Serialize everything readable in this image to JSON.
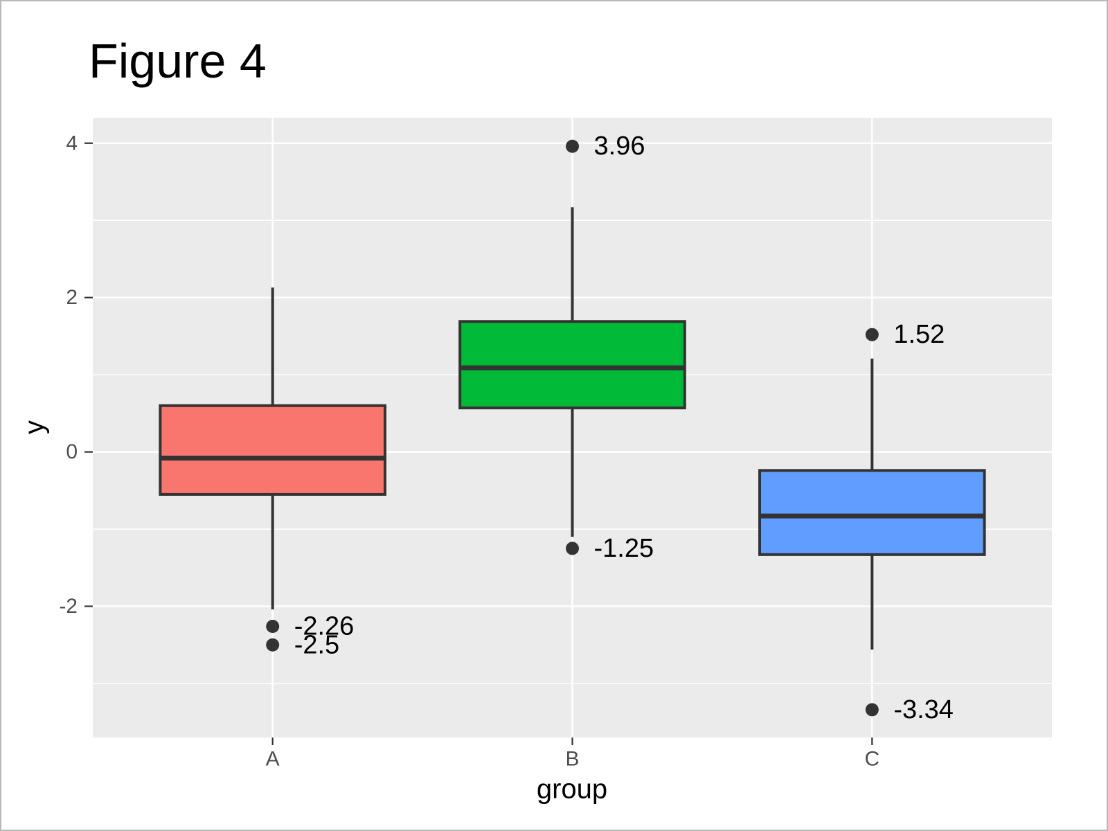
{
  "chart_data": {
    "type": "boxplot",
    "title": "Figure 4",
    "xlabel": "group",
    "ylabel": "y",
    "categories": [
      "A",
      "B",
      "C"
    ],
    "ylim": [
      -3.7,
      4.33
    ],
    "y_major_ticks": [
      {
        "value": 4,
        "label": "4"
      },
      {
        "value": 2,
        "label": "2"
      },
      {
        "value": 0,
        "label": "0"
      },
      {
        "value": -2,
        "label": "-2"
      }
    ],
    "y_minor_gridlines": [
      3,
      1,
      -1,
      -3
    ],
    "grid": true,
    "legend": "none",
    "panel_bg_color": "#EBEBEB",
    "gridline_color": "#FFFFFF",
    "box_outline_color": "#333333",
    "tick_label_color": "#4D4D4D",
    "outlier_label_color": "#000000",
    "series": [
      {
        "name": "A",
        "fill_color": "#F8766D",
        "whisker_low": -2.04,
        "q1": -0.55,
        "median": -0.08,
        "q3": 0.6,
        "whisker_high": 2.13,
        "outliers": [
          {
            "value": -2.26,
            "label": "-2.26"
          },
          {
            "value": -2.5,
            "label": "-2.5"
          }
        ]
      },
      {
        "name": "B",
        "fill_color": "#00BA38",
        "whisker_low": -1.1,
        "q1": 0.57,
        "median": 1.09,
        "q3": 1.69,
        "whisker_high": 3.17,
        "outliers": [
          {
            "value": 3.96,
            "label": "3.96"
          },
          {
            "value": -1.25,
            "label": "-1.25"
          }
        ]
      },
      {
        "name": "C",
        "fill_color": "#619CFF",
        "whisker_low": -2.56,
        "q1": -1.33,
        "median": -0.83,
        "q3": -0.24,
        "whisker_high": 1.21,
        "outliers": [
          {
            "value": 1.52,
            "label": "1.52"
          },
          {
            "value": -3.34,
            "label": "-3.34"
          }
        ]
      }
    ]
  }
}
